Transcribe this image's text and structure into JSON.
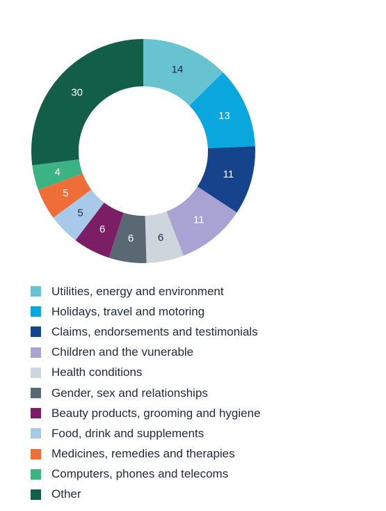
{
  "chart_data": {
    "type": "pie",
    "categories": [
      "Utilities, energy and environment",
      "Holidays, travel and motoring",
      "Claims, endorsements and testimonials",
      "Children and the vunerable",
      "Health conditions",
      "Gender, sex and relationships",
      "Beauty products, grooming and hygiene",
      "Food, drink and supplements",
      "Medicines, remedies and therapies",
      "Computers, phones and telecoms",
      "Other"
    ],
    "values": [
      14,
      13,
      11,
      11,
      6,
      6,
      6,
      5,
      5,
      4,
      30
    ],
    "colors": [
      "#66c3cf",
      "#0aa7df",
      "#15448d",
      "#a9a3d4",
      "#cdd5dd",
      "#5a6873",
      "#7c1e66",
      "#a9c9ea",
      "#ef6d36",
      "#3cb383",
      "#135e46"
    ],
    "label_colors": [
      "#1f2a44",
      "#ffffff",
      "#ffffff",
      "#ffffff",
      "#1f2a44",
      "#ffffff",
      "#ffffff",
      "#1f2a44",
      "#ffffff",
      "#ffffff",
      "#ffffff"
    ],
    "donut": true,
    "start_angle_deg": 0,
    "direction": "clockwise",
    "legend_position": "bottom-left"
  }
}
